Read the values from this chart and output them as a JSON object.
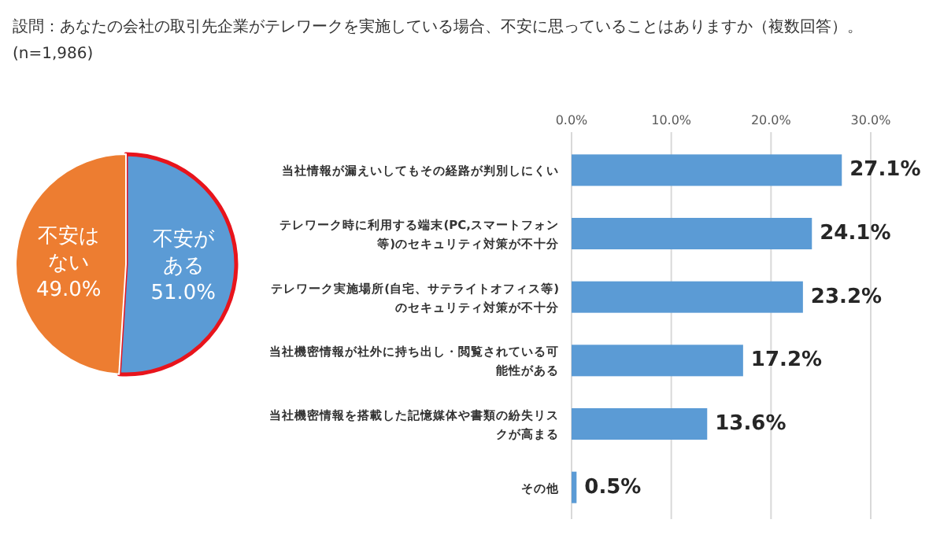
{
  "chart_data": [
    {
      "type": "pie",
      "title": "設問：あなたの会社の取引先企業がテレワークを実施している場合、不安に思っていることはありますか（複数回答）。",
      "subtitle": "(n=1,986)",
      "categories": [
        "不安がある",
        "不安はない"
      ],
      "values": [
        51.0,
        49.0
      ],
      "value_labels": [
        "51.0%",
        "49.0%"
      ],
      "colors": [
        "#5b9bd5",
        "#ed7d31"
      ]
    },
    {
      "type": "bar",
      "orientation": "horizontal",
      "categories": [
        "当社情報が漏えいしてもその経路が判別しにくい",
        "テレワーク時に利用する端末(PC,スマートフォン等)のセキュリティ対策が不十分",
        "テレワーク実施場所(自宅、サテライトオフィス等)のセキュリティ対策が不十分",
        "当社機密情報が社外に持ち出し・閲覧されている可能性がある",
        "当社機密情報を搭載した記憶媒体や書類の紛失リスクが高まる",
        "その他"
      ],
      "values": [
        27.1,
        24.1,
        23.2,
        17.2,
        13.6,
        0.5
      ],
      "value_labels": [
        "27.1%",
        "24.1%",
        "23.2%",
        "17.2%",
        "13.6%",
        "0.5%"
      ],
      "color": "#5b9bd5",
      "grid": "x",
      "xlim": [
        0,
        30
      ],
      "xticks": [
        {
          "value": 0,
          "label": "0.0%"
        },
        {
          "value": 10,
          "label": "10.0%"
        },
        {
          "value": 20,
          "label": "20.0%"
        },
        {
          "value": 30,
          "label": "30.0%"
        }
      ]
    }
  ]
}
